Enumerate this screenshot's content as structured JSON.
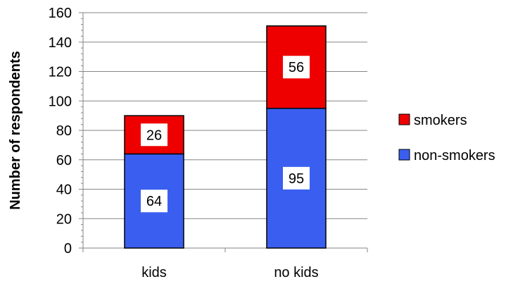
{
  "chart_data": {
    "type": "bar",
    "stacked": true,
    "categories": [
      "kids",
      "no kids"
    ],
    "series": [
      {
        "name": "non-smokers",
        "values": [
          64,
          95
        ],
        "color": "#3a5ff0"
      },
      {
        "name": "smokers",
        "values": [
          26,
          56
        ],
        "color": "#ee0000"
      }
    ],
    "title": "",
    "xlabel": "",
    "ylabel": "Number of respondents",
    "ylim": [
      0,
      160
    ],
    "yticks": [
      0,
      20,
      40,
      60,
      80,
      100,
      120,
      140,
      160
    ],
    "grid": true,
    "legend": "right",
    "legend_order": [
      "smokers",
      "non-smokers"
    ]
  }
}
